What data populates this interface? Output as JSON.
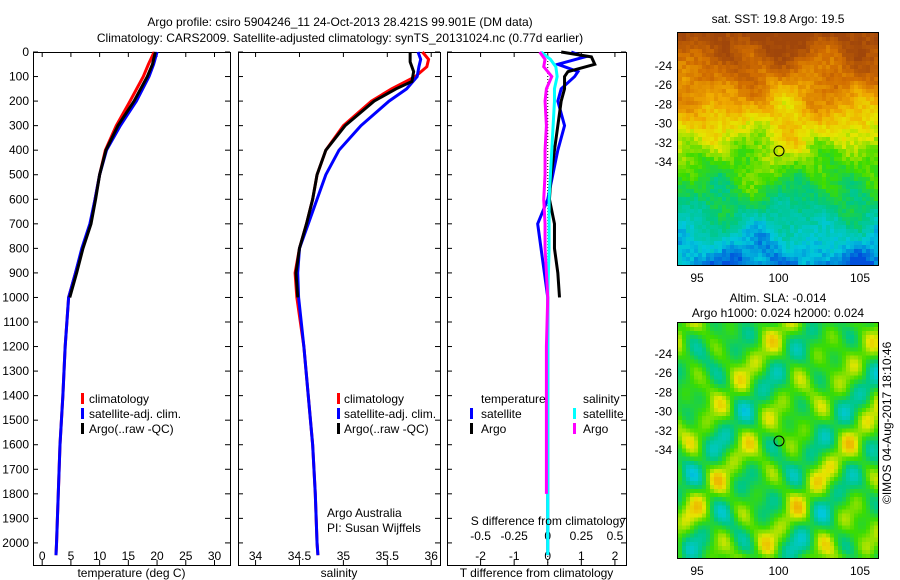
{
  "title": {
    "line1": "Argo profile: csiro 5904246_11 24-Oct-2013 28.421S 99.901E (DM data)",
    "line2": "Climatology: CARS2009. Satellite-adjusted climatology: synTS_20131024.nc (0.77d earlier)"
  },
  "legend_profiles": [
    "climatology",
    "satellite-adj. clim.",
    "Argo(..raw -QC)"
  ],
  "legend_diff": {
    "temperature_title": "temperature",
    "salinity_title": "salinity",
    "satellite": "satellite",
    "argo": "Argo"
  },
  "credit": {
    "line1": "Argo Australia",
    "line2": "PI: Susan Wijffels"
  },
  "copyright": "©IMOS 04-Aug-2017 18:10:46",
  "maps": {
    "sst_title": "sat. SST: 19.8 Argo: 19.5",
    "sla_title1": "Altim. SLA: -0.014",
    "sla_title2": "Argo h1000: 0.024 h2000: 0.024",
    "lon_ticks": [
      "95",
      "100",
      "105"
    ],
    "lat_ticks": [
      "-24",
      "-26",
      "-28",
      "-30",
      "-32",
      "-34"
    ],
    "float_position": {
      "lon": 99.901,
      "lat": -28.421
    }
  },
  "colors": {
    "climatology": "#ff0000",
    "satellite": "#0000ff",
    "argo": "#000000",
    "sal_satellite": "#00ffff",
    "sal_argo": "#ff00ff"
  },
  "chart_data": [
    {
      "type": "line",
      "title": "",
      "xlabel": "temperature (deg C)",
      "ylabel": "",
      "xlim": [
        -1.6,
        32.7
      ],
      "ylim": [
        2090,
        0
      ],
      "xticks": [
        0,
        5,
        10,
        15,
        20,
        25,
        30
      ],
      "yticks": [
        0,
        100,
        200,
        300,
        400,
        500,
        600,
        700,
        800,
        900,
        1000,
        1100,
        1200,
        1300,
        1400,
        1500,
        1600,
        1700,
        1800,
        1900,
        2000
      ],
      "series": [
        {
          "name": "climatology",
          "depth": [
            0,
            50,
            100,
            200,
            300,
            400,
            500,
            600,
            700,
            800,
            900,
            1000,
            1200,
            1400,
            1600,
            1800,
            2000,
            2050
          ],
          "values": [
            19.5,
            18.5,
            17.6,
            15.3,
            12.9,
            11,
            10,
            9.2,
            8.4,
            7,
            5.8,
            4.6,
            4,
            3.6,
            3.1,
            2.8,
            2.5,
            2.4
          ]
        },
        {
          "name": "satellite-adj. clim.",
          "depth": [
            0,
            50,
            100,
            200,
            300,
            400,
            500,
            600,
            700,
            800,
            900,
            1000,
            1200,
            1400,
            1600,
            1800,
            2000,
            2050
          ],
          "values": [
            20,
            19.4,
            18.6,
            16.4,
            13.6,
            11.2,
            10,
            9.2,
            8.3,
            6.9,
            5.8,
            4.6,
            4,
            3.6,
            3.1,
            2.8,
            2.5,
            2.4
          ]
        },
        {
          "name": "Argo(..raw -QC)",
          "depth": [
            0,
            50,
            100,
            200,
            300,
            400,
            500,
            600,
            700,
            800,
            900,
            1000
          ],
          "values": [
            19.7,
            19.2,
            18.3,
            16,
            13.2,
            11.1,
            10,
            9.3,
            8.5,
            7.1,
            6,
            4.8
          ]
        }
      ]
    },
    {
      "type": "line",
      "xlabel": "salinity",
      "xlim": [
        33.8,
        36.1
      ],
      "ylim": [
        2090,
        0
      ],
      "xticks": [
        34,
        34.5,
        35,
        35.5,
        36
      ],
      "series": [
        {
          "name": "climatology",
          "depth": [
            0,
            30,
            60,
            100,
            150,
            200,
            300,
            400,
            500,
            600,
            700,
            800,
            900,
            1000,
            1200,
            1400,
            1600,
            1800,
            2000,
            2050
          ],
          "values": [
            35.9,
            35.97,
            35.95,
            35.82,
            35.55,
            35.32,
            35.0,
            34.8,
            34.7,
            34.65,
            34.58,
            34.5,
            34.45,
            34.47,
            34.55,
            34.6,
            34.65,
            34.68,
            34.7,
            34.71
          ]
        },
        {
          "name": "satellite-adj. clim.",
          "depth": [
            0,
            30,
            60,
            100,
            150,
            200,
            300,
            400,
            500,
            600,
            700,
            800,
            900,
            1000,
            1200,
            1400,
            1600,
            1800,
            2000,
            2050
          ],
          "values": [
            35.85,
            35.88,
            35.86,
            35.84,
            35.72,
            35.52,
            35.2,
            34.95,
            34.8,
            34.7,
            34.6,
            34.5,
            34.48,
            34.49,
            34.55,
            34.6,
            34.65,
            34.68,
            34.7,
            34.71
          ]
        },
        {
          "name": "Argo(..raw -QC)",
          "depth": [
            0,
            40,
            80,
            120,
            150,
            200,
            300,
            400,
            500,
            600,
            700,
            800,
            900,
            1000
          ],
          "values": [
            35.76,
            35.76,
            35.8,
            35.78,
            35.6,
            35.35,
            35.02,
            34.8,
            34.7,
            34.65,
            34.58,
            34.5,
            34.46,
            34.48
          ]
        }
      ]
    },
    {
      "type": "line",
      "xlabel": "T difference from climatology",
      "xlabel2": "S difference from climatology",
      "xlim": [
        -3.0,
        2.33
      ],
      "xticks": [
        -2,
        -1,
        0,
        1,
        2
      ],
      "xticks_S": [
        -0.5,
        -0.25,
        0,
        0.25,
        0.5
      ],
      "ylim": [
        2090,
        0
      ],
      "series": [
        {
          "name": "temperature satellite",
          "units": "T",
          "depth": [
            0,
            20,
            50,
            80,
            100,
            150,
            200,
            300,
            400,
            500,
            600,
            700,
            800,
            900,
            1000,
            1200,
            1500,
            1800,
            2050
          ],
          "values": [
            0.7,
            1.1,
            0.3,
            0.9,
            0.8,
            0.4,
            0.3,
            0.5,
            0.3,
            0.15,
            0,
            -0.3,
            -0.2,
            -0.1,
            0,
            0,
            0,
            0,
            0
          ]
        },
        {
          "name": "temperature Argo",
          "units": "T",
          "depth": [
            0,
            20,
            50,
            80,
            100,
            150,
            200,
            300,
            400,
            500,
            600,
            700,
            800,
            900,
            1000
          ],
          "values": [
            0.4,
            1.3,
            1.4,
            0.6,
            0.5,
            0.5,
            0.4,
            0.3,
            0.2,
            0.1,
            0.05,
            0.2,
            0.2,
            0.3,
            0.35
          ]
        },
        {
          "name": "salinity satellite",
          "units": "S",
          "depth": [
            0,
            30,
            60,
            100,
            150,
            200,
            300,
            400,
            500,
            600,
            800,
            1000,
            1200,
            1500,
            1800,
            2050
          ],
          "values": [
            -0.05,
            0.02,
            0.06,
            0.07,
            0.05,
            0.05,
            0.04,
            0.03,
            0.02,
            0.01,
            0.01,
            0,
            0,
            0,
            0,
            0
          ]
        },
        {
          "name": "salinity Argo",
          "units": "S",
          "depth": [
            0,
            30,
            60,
            100,
            150,
            200,
            300,
            400,
            500,
            600,
            700,
            800,
            900,
            1000,
            1200,
            1500,
            1800
          ],
          "values": [
            -0.06,
            -0.02,
            -0.03,
            0.03,
            -0.01,
            -0.02,
            -0.01,
            -0.02,
            -0.02,
            -0.03,
            -0.02,
            -0.02,
            -0.01,
            0,
            -0.01,
            -0.01,
            -0.01
          ]
        }
      ]
    }
  ]
}
